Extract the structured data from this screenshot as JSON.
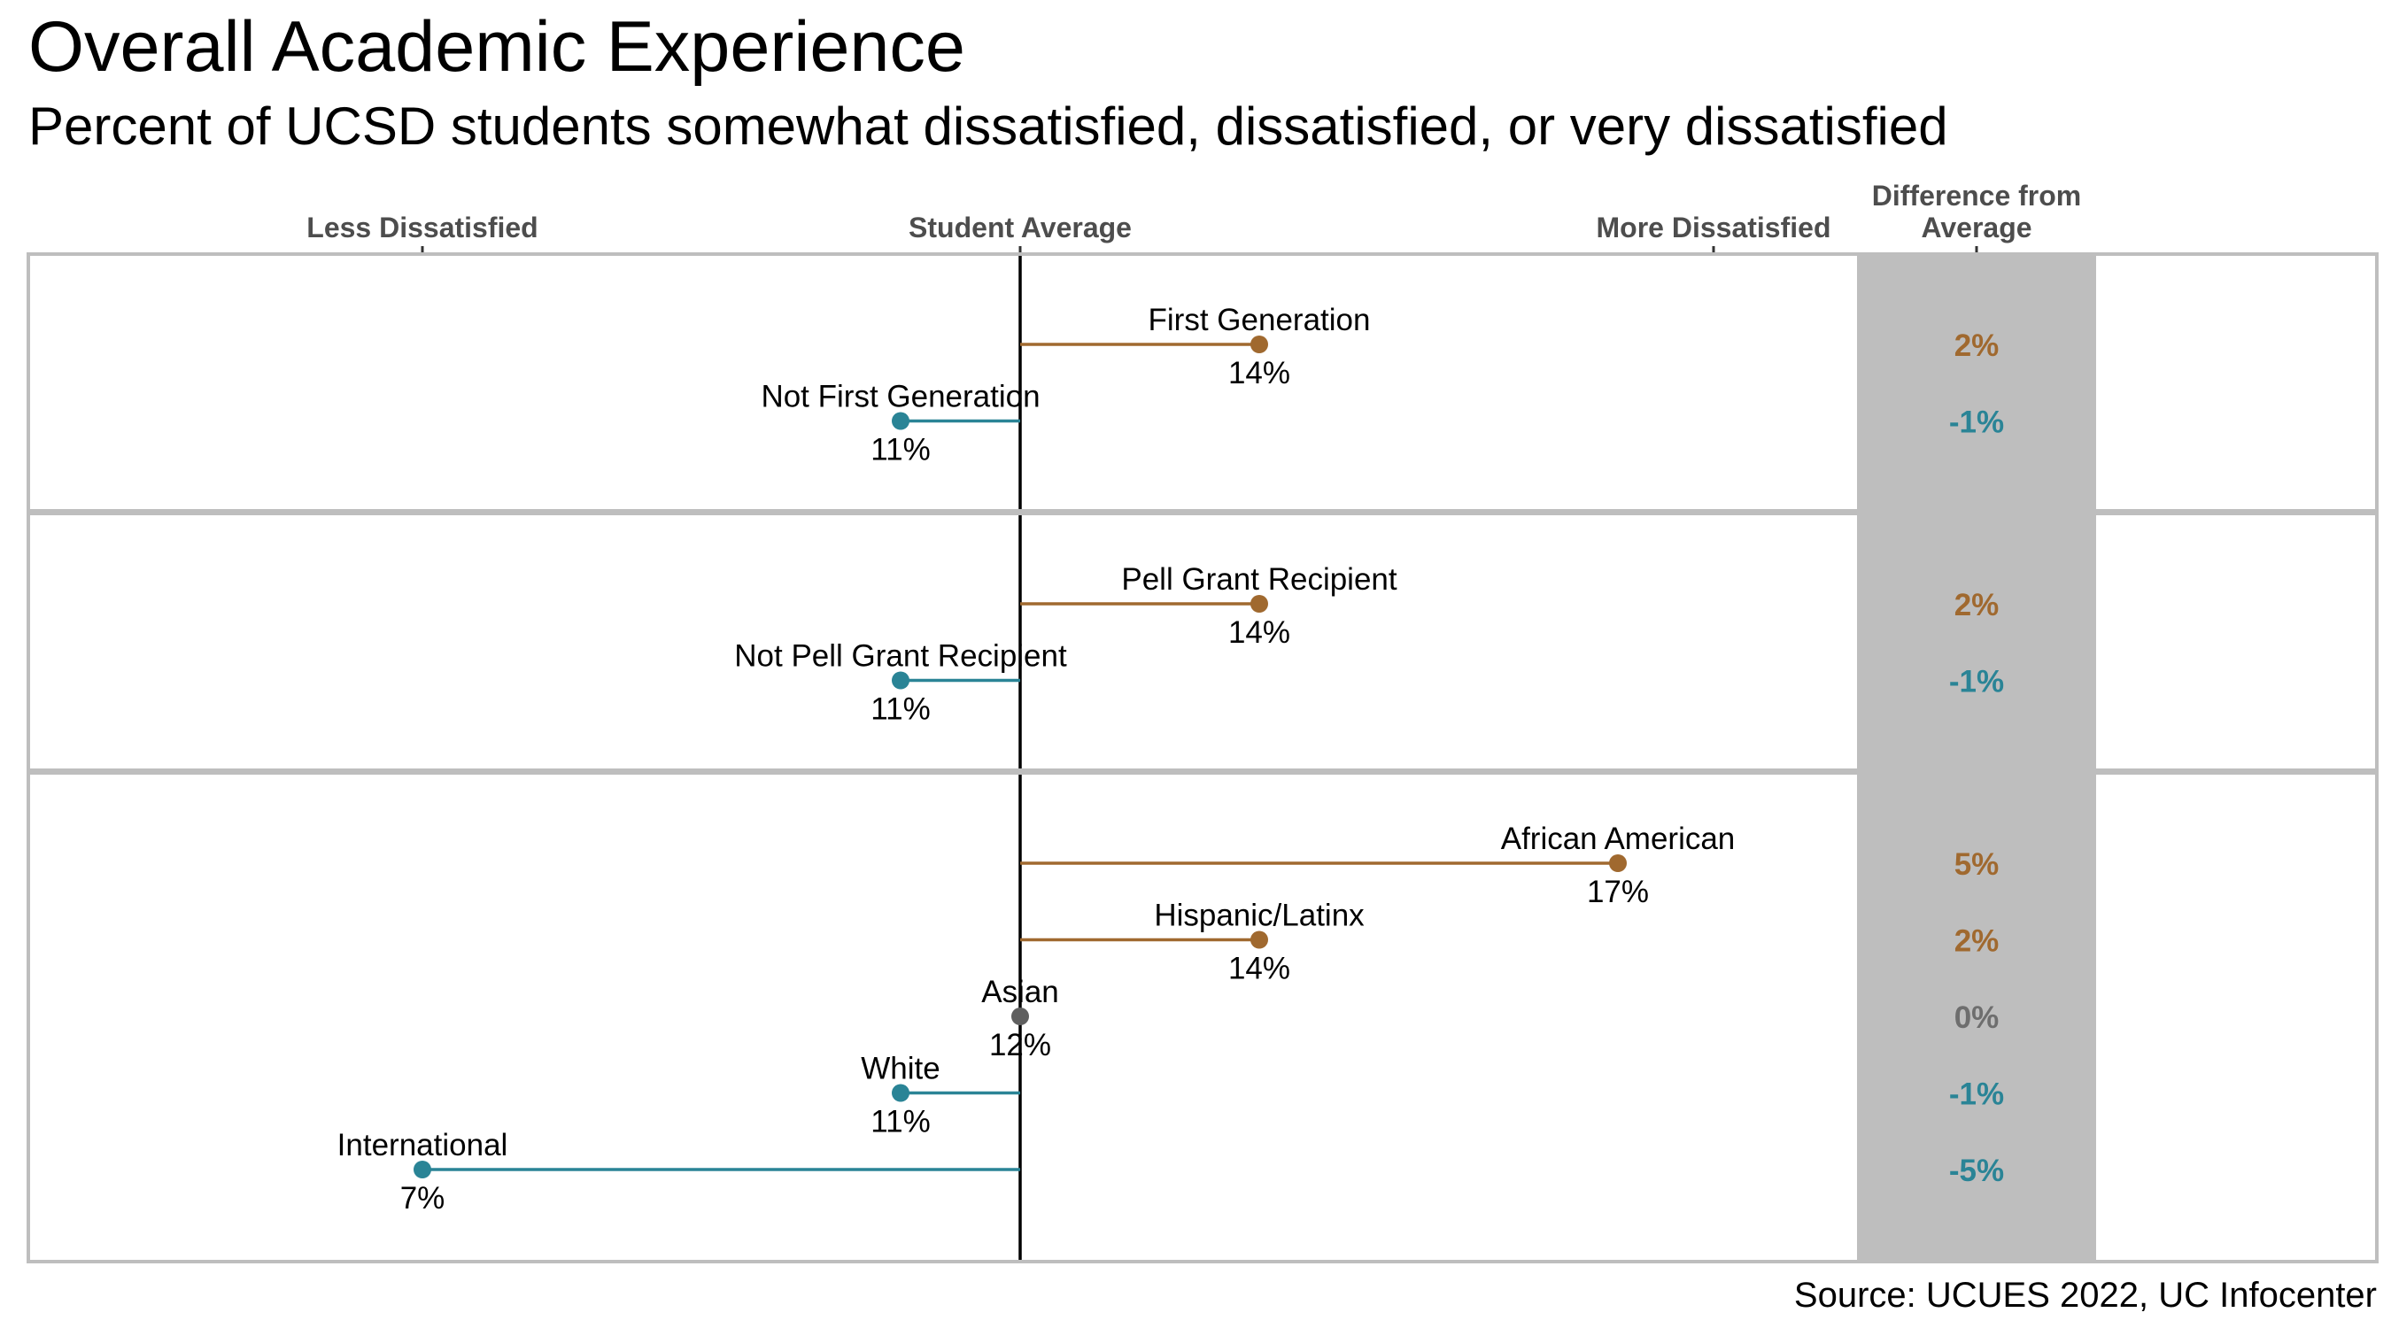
{
  "title": "Overall Academic Experience",
  "subtitle": "Percent of UCSD students somewhat dissatisfied, dissatisfied, or very dissatisfied",
  "source": "Source: UCUES 2022, UC Infocenter",
  "colors": {
    "above_average": "#A0692F",
    "below_average": "#2A8496",
    "at_average": "#5F5F5F",
    "diff_panel": "#BEBEBE",
    "panel_border": "#BEBEBE",
    "axis_text": "#4D4D4D"
  },
  "chart_data": {
    "type": "lollipop",
    "title": "Overall Academic Experience",
    "subtitle": "Percent of UCSD students somewhat dissatisfied, dissatisfied, or very dissatisfied",
    "average": 12,
    "x_axis": {
      "range": [
        5.5,
        21
      ],
      "ticks": [
        {
          "value": 7,
          "label": "Less Dissatisfied"
        },
        {
          "value": 12,
          "label": "Student Average"
        },
        {
          "value": 17.8,
          "label": "More Dissatisfied"
        },
        {
          "value": 20,
          "label": "Difference from\nAverage"
        }
      ]
    },
    "groups": [
      {
        "name": "first-generation",
        "items": [
          {
            "label": "First Generation",
            "value": 14,
            "value_label": "14%",
            "diff": "2%",
            "direction": "above"
          },
          {
            "label": "Not First Generation",
            "value": 11,
            "value_label": "11%",
            "diff": "-1%",
            "direction": "below"
          }
        ]
      },
      {
        "name": "pell-grant",
        "items": [
          {
            "label": "Pell Grant Recipient",
            "value": 14,
            "value_label": "14%",
            "diff": "2%",
            "direction": "above"
          },
          {
            "label": "Not Pell Grant Recipient",
            "value": 11,
            "value_label": "11%",
            "diff": "-1%",
            "direction": "below"
          }
        ]
      },
      {
        "name": "ethnicity",
        "items": [
          {
            "label": "African American",
            "value": 17,
            "value_label": "17%",
            "diff": "5%",
            "direction": "above"
          },
          {
            "label": "Hispanic/Latinx",
            "value": 14,
            "value_label": "14%",
            "diff": "2%",
            "direction": "above"
          },
          {
            "label": "Asian",
            "value": 12,
            "value_label": "12%",
            "diff": "0%",
            "direction": "at"
          },
          {
            "label": "White",
            "value": 11,
            "value_label": "11%",
            "diff": "-1%",
            "direction": "below"
          },
          {
            "label": "International",
            "value": 7,
            "value_label": "7%",
            "diff": "-5%",
            "direction": "below"
          }
        ]
      }
    ]
  }
}
